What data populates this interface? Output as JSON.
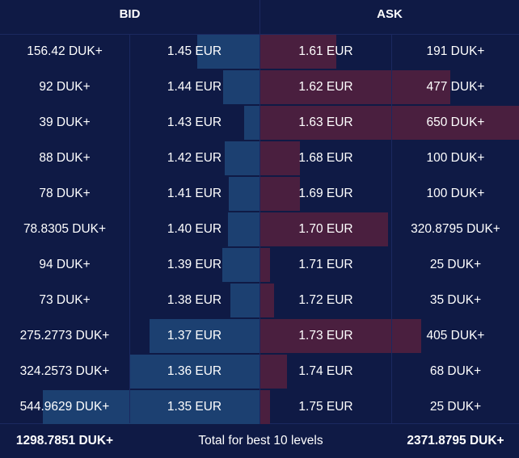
{
  "header": {
    "bid_label": "BID",
    "ask_label": "ASK"
  },
  "colors": {
    "background": "#0f1a45",
    "bid_bar": "#1c4071",
    "ask_bar": "#4a1f3f",
    "text": "#ffffff"
  },
  "max_depth": 650,
  "bids": [
    {
      "volume": "156.42 DUK+",
      "price": "1.45 EUR",
      "amount": 156.42
    },
    {
      "volume": "92 DUK+",
      "price": "1.44 EUR",
      "amount": 92
    },
    {
      "volume": "39 DUK+",
      "price": "1.43 EUR",
      "amount": 39
    },
    {
      "volume": "88 DUK+",
      "price": "1.42 EUR",
      "amount": 88
    },
    {
      "volume": "78 DUK+",
      "price": "1.41 EUR",
      "amount": 78
    },
    {
      "volume": "78.8305 DUK+",
      "price": "1.40 EUR",
      "amount": 78.8305
    },
    {
      "volume": "94 DUK+",
      "price": "1.39 EUR",
      "amount": 94
    },
    {
      "volume": "73 DUK+",
      "price": "1.38 EUR",
      "amount": 73
    },
    {
      "volume": "275.2773 DUK+",
      "price": "1.37 EUR",
      "amount": 275.2773
    },
    {
      "volume": "324.2573 DUK+",
      "price": "1.36 EUR",
      "amount": 324.2573
    },
    {
      "volume": "544.9629 DUK+",
      "price": "1.35 EUR",
      "amount": 544.9629
    }
  ],
  "asks": [
    {
      "volume": "191 DUK+",
      "price": "1.61 EUR",
      "amount": 191
    },
    {
      "volume": "477 DUK+",
      "price": "1.62 EUR",
      "amount": 477
    },
    {
      "volume": "650 DUK+",
      "price": "1.63 EUR",
      "amount": 650
    },
    {
      "volume": "100 DUK+",
      "price": "1.68 EUR",
      "amount": 100
    },
    {
      "volume": "100 DUK+",
      "price": "1.69 EUR",
      "amount": 100
    },
    {
      "volume": "320.8795 DUK+",
      "price": "1.70 EUR",
      "amount": 320.8795
    },
    {
      "volume": "25 DUK+",
      "price": "1.71 EUR",
      "amount": 25
    },
    {
      "volume": "35 DUK+",
      "price": "1.72 EUR",
      "amount": 35
    },
    {
      "volume": "405 DUK+",
      "price": "1.73 EUR",
      "amount": 405
    },
    {
      "volume": "68 DUK+",
      "price": "1.74 EUR",
      "amount": 68
    },
    {
      "volume": "25 DUK+",
      "price": "1.75 EUR",
      "amount": 25
    }
  ],
  "footer": {
    "bid_total": "1298.7851 DUK+",
    "label": "Total for best 10 levels",
    "ask_total": "2371.8795 DUK+"
  }
}
